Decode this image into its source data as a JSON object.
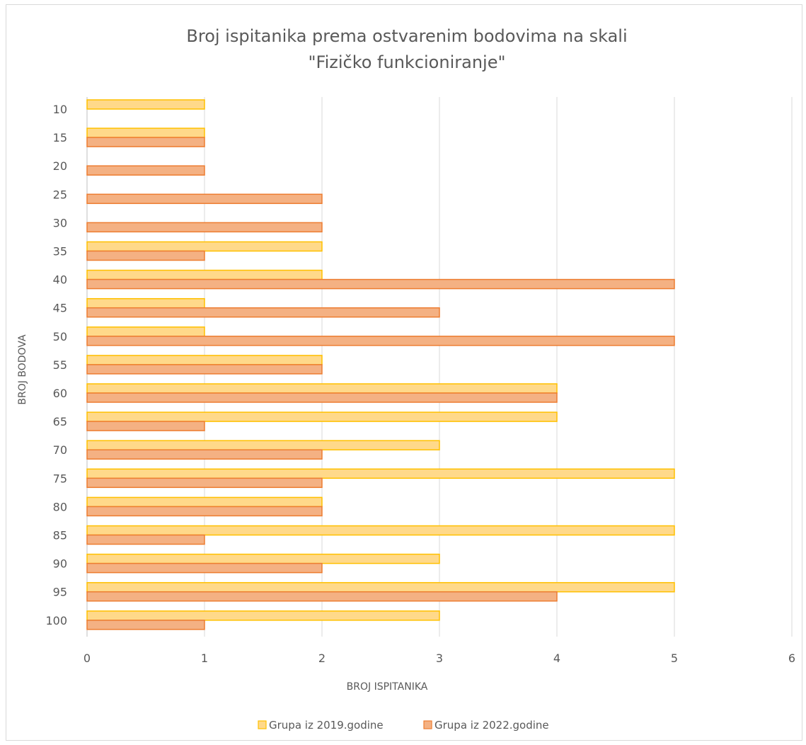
{
  "chart_data": {
    "type": "bar",
    "orientation": "horizontal",
    "title_line1": "Broj ispitanika prema ostvarenim bodovima na skali",
    "title_line2": "\"Fizičko funkcioniranje\"",
    "xlabel": "BROJ ISPITANIKA",
    "ylabel": "BROJ BODOVA",
    "xlim": [
      0,
      6
    ],
    "xticks": [
      "0",
      "1",
      "2",
      "3",
      "4",
      "5",
      "6"
    ],
    "grid": "vertical",
    "legend_position": "bottom",
    "categories": [
      "10",
      "15",
      "20",
      "25",
      "30",
      "35",
      "40",
      "45",
      "50",
      "55",
      "60",
      "65",
      "70",
      "75",
      "80",
      "85",
      "90",
      "95",
      "100"
    ],
    "series": [
      {
        "name": "Grupa iz 2019.godine",
        "fill": "#FFD98A",
        "stroke": "#FFC000",
        "values": [
          1,
          1,
          0,
          0,
          0,
          2,
          2,
          1,
          1,
          2,
          4,
          4,
          3,
          5,
          2,
          5,
          3,
          5,
          3
        ]
      },
      {
        "name": "Grupa iz 2022.godine",
        "fill": "#F4B183",
        "stroke": "#ED7D31",
        "values": [
          0,
          1,
          1,
          2,
          2,
          1,
          5,
          3,
          5,
          2,
          4,
          1,
          2,
          2,
          2,
          1,
          2,
          4,
          1
        ]
      }
    ]
  }
}
